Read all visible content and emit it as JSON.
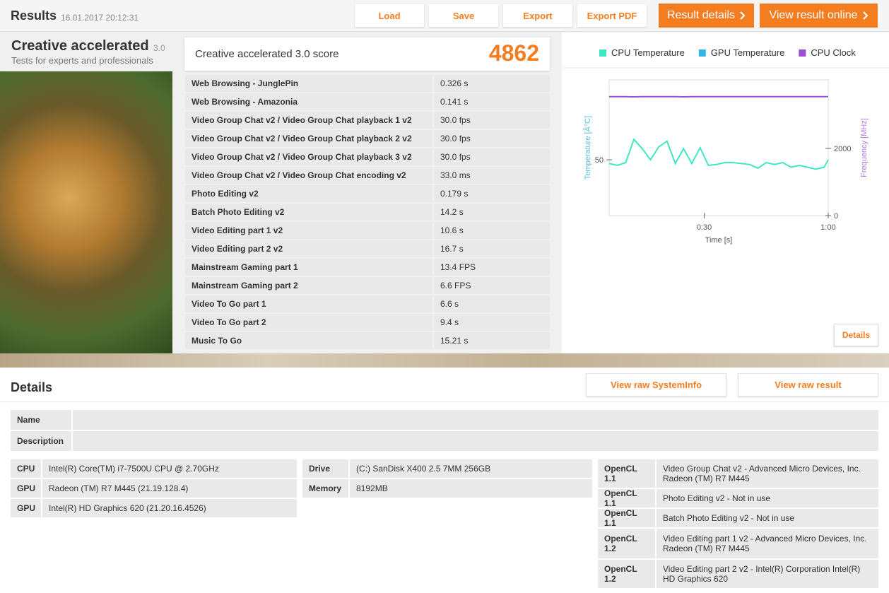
{
  "header": {
    "title": "Results",
    "date": "16.01.2017 20:12:31",
    "buttons": [
      "Load",
      "Save",
      "Export",
      "Export PDF"
    ],
    "primary_buttons": [
      "Result details",
      "View result online"
    ]
  },
  "benchmark": {
    "name": "Creative accelerated",
    "version": "3.0",
    "subtitle": "Tests for experts and professionals"
  },
  "score": {
    "label": "Creative accelerated 3.0 score",
    "value": 4862
  },
  "tests": {
    "rows": [
      [
        "Web Browsing - JunglePin",
        "0.326 s"
      ],
      [
        "Web Browsing - Amazonia",
        "0.141 s"
      ],
      [
        "Video Group Chat v2 / Video Group Chat playback 1 v2",
        "30.0 fps"
      ],
      [
        "Video Group Chat v2 / Video Group Chat playback 2 v2",
        "30.0 fps"
      ],
      [
        "Video Group Chat v2 / Video Group Chat playback 3 v2",
        "30.0 fps"
      ],
      [
        "Video Group Chat v2 / Video Group Chat encoding v2",
        "33.0 ms"
      ],
      [
        "Photo Editing v2",
        "0.179 s"
      ],
      [
        "Batch Photo Editing v2",
        "14.2 s"
      ],
      [
        "Video Editing part 1 v2",
        "10.6 s"
      ],
      [
        "Video Editing part 2 v2",
        "16.7 s"
      ],
      [
        "Mainstream Gaming part 1",
        "13.4 FPS"
      ],
      [
        "Mainstream Gaming part 2",
        "6.6 FPS"
      ],
      [
        "Video To Go part 1",
        "6.6 s"
      ],
      [
        "Video To Go part 2",
        "9.4 s"
      ],
      [
        "Music To Go",
        "15.21 s"
      ]
    ]
  },
  "chart_data": {
    "type": "line",
    "legend": "top",
    "x_label": "Time [s]",
    "y_label": "Temperature [Â°C]",
    "y2_label": "Frequency [MHz]",
    "x": [
      7,
      9,
      11,
      13,
      15,
      17,
      19,
      21,
      23,
      25,
      27,
      29,
      31,
      33,
      35,
      37,
      39,
      41,
      43,
      45,
      47,
      49,
      51,
      53,
      55,
      57,
      59,
      60
    ],
    "xlim": [
      7,
      60
    ],
    "xticks": [
      {
        "value": 30,
        "label": "0:30"
      },
      {
        "value": 60,
        "label": "1:00"
      }
    ],
    "ylim": [
      20,
      93
    ],
    "yticks": [
      50
    ],
    "y2lim": [
      0,
      4040
    ],
    "y2ticks": [
      0,
      2000
    ],
    "series": [
      {
        "name": "CPU Temperature",
        "color": "#3fe8c2",
        "values": [
          48,
          47,
          48.5,
          61,
          56,
          50,
          57,
          60,
          48,
          56,
          48,
          56.5,
          47,
          47.5,
          48.5,
          48.5,
          48,
          47.5,
          45.5,
          48.5,
          47.5,
          48.5,
          46,
          47,
          46,
          45,
          46,
          50
        ]
      },
      {
        "name": "GPU Temperature",
        "color": "#33b5e5",
        "values": [
          null,
          null,
          null,
          null,
          null,
          null,
          null,
          null,
          null,
          null,
          null,
          null,
          null,
          null,
          null,
          null,
          null,
          null,
          null,
          null,
          null,
          null,
          null,
          null,
          null,
          null,
          null,
          null
        ]
      },
      {
        "name": "CPU Clock",
        "color": "#9b4fd4",
        "axis": "y2",
        "values": [
          3540,
          3540,
          3540,
          3535,
          3540,
          3540,
          3540,
          3540,
          3540,
          3535,
          3540,
          3540,
          3540,
          3540,
          3540,
          3540,
          3540,
          3540,
          3540,
          3540,
          3540,
          3540,
          3540,
          3540,
          3540,
          3540,
          3540,
          3540
        ]
      }
    ]
  },
  "chart_button": "Details",
  "details": {
    "title": "Details",
    "buttons": [
      "View raw SystemInfo",
      "View raw result"
    ],
    "info": [
      [
        "Name",
        ""
      ],
      [
        "Description",
        ""
      ]
    ],
    "system": [
      [
        "CPU",
        "Intel(R) Core(TM) i7-7500U CPU @ 2.70GHz"
      ],
      [
        "GPU",
        "Radeon (TM) R7 M445 (21.19.128.4)"
      ],
      [
        "GPU",
        "Intel(R) HD Graphics 620 (21.20.16.4526)"
      ]
    ],
    "storage": [
      [
        "Drive",
        "(C:) SanDisk X400 2.5 7MM 256GB"
      ],
      [
        "Memory",
        "8192MB"
      ]
    ],
    "opencl": [
      [
        "OpenCL 1.1",
        "Video Group Chat v2 - Advanced Micro Devices, Inc. Radeon (TM) R7 M445"
      ],
      [
        "OpenCL 1.1",
        "Photo Editing v2 - Not in use"
      ],
      [
        "OpenCL 1.1",
        "Batch Photo Editing v2 - Not in use"
      ],
      [
        "OpenCL 1.2",
        "Video Editing part 1 v2 - Advanced Micro Devices, Inc. Radeon (TM) R7 M445"
      ],
      [
        "OpenCL 1.2",
        "Video Editing part 2 v2 - Intel(R) Corporation Intel(R) HD Graphics 620"
      ]
    ]
  }
}
